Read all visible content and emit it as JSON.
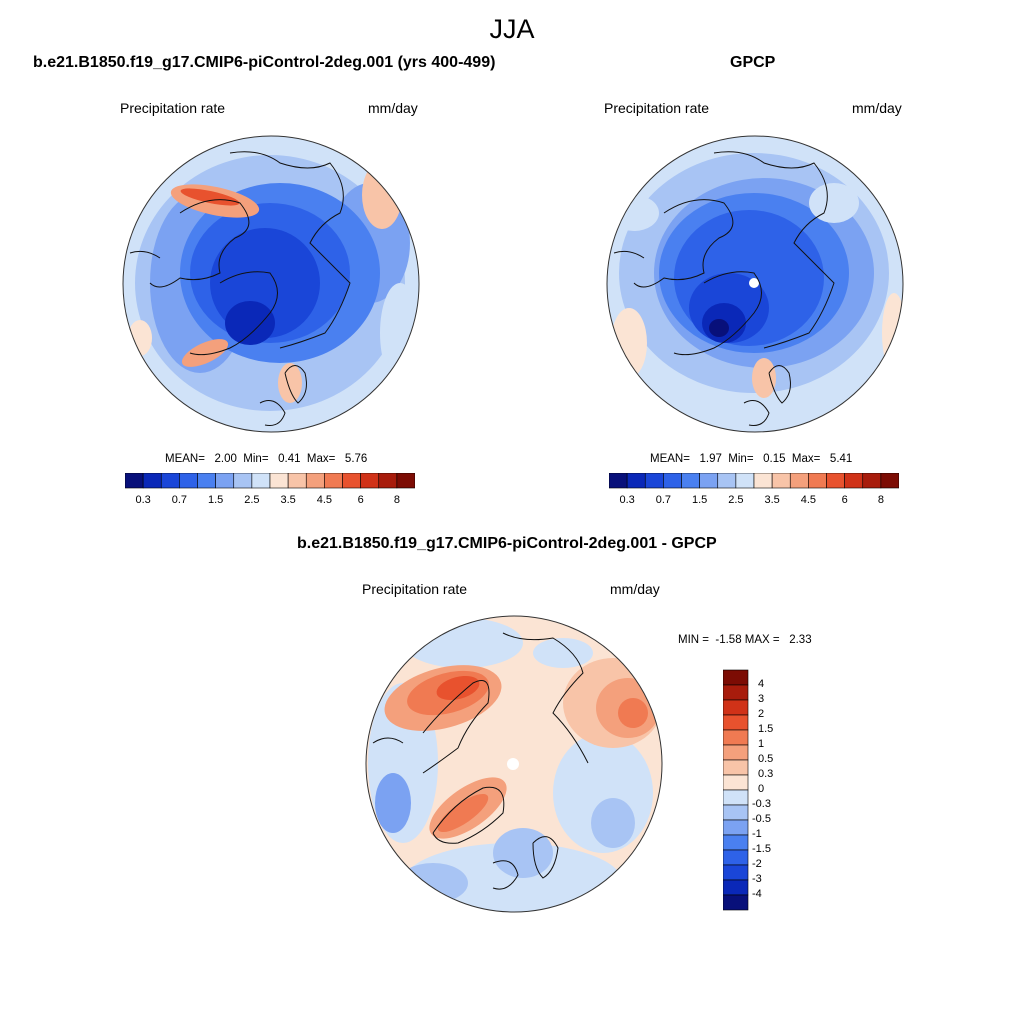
{
  "title": "JJA",
  "colors": {
    "blues": [
      "#08107a",
      "#0a28b8",
      "#1a46d8",
      "#2e62e8",
      "#4a80f0",
      "#7ba2f2",
      "#a8c4f4",
      "#d0e2f8"
    ],
    "reds": [
      "#fbe4d4",
      "#f8c4a8",
      "#f4a07c",
      "#f07a52",
      "#e8522e",
      "#d03218",
      "#a81c0c",
      "#7c0c04"
    ],
    "zero": "#eeeeee"
  },
  "panels": [
    {
      "title": "b.e21.B1850.f19_g17.CMIP6-piControl-2deg.001 (yrs 400-499)",
      "variable": "Precipitation rate",
      "units": "mm/day",
      "stats": "MEAN=   2.00  Min=   0.41  Max=   5.76",
      "colorbar_ticks": [
        "0.3",
        "0.7",
        "1.5",
        "2.5",
        "3.5",
        "4.5",
        "6",
        "8"
      ]
    },
    {
      "title": "GPCP",
      "variable": "Precipitation rate",
      "units": "mm/day",
      "stats": "MEAN=   1.97  Min=   0.15  Max=   5.41",
      "colorbar_ticks": [
        "0.3",
        "0.7",
        "1.5",
        "2.5",
        "3.5",
        "4.5",
        "6",
        "8"
      ]
    },
    {
      "title": "b.e21.B1850.f19_g17.CMIP6-piControl-2deg.001 - GPCP",
      "variable": "Precipitation rate",
      "units": "mm/day",
      "stats": "MIN =  -1.58 MAX =   2.33",
      "colorbar_ticks": [
        "4",
        "3",
        "2",
        "1.5",
        "1",
        "0.5",
        "0.3",
        "0",
        "-0.3",
        "-0.5",
        "-1",
        "-1.5",
        "-2",
        "-3",
        "-4"
      ]
    }
  ]
}
